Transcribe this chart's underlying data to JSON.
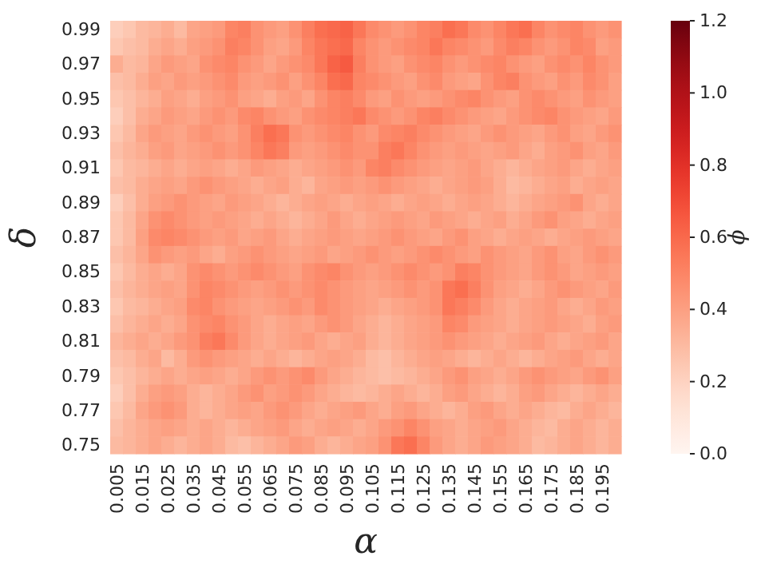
{
  "chart_data": {
    "type": "heatmap",
    "xlabel": "α",
    "ylabel": "δ",
    "clabel": "ϕ",
    "categories": [
      "0.005",
      null,
      "0.015",
      null,
      "0.025",
      null,
      "0.035",
      null,
      "0.045",
      null,
      "0.055",
      null,
      "0.065",
      null,
      "0.075",
      null,
      "0.085",
      null,
      "0.095",
      null,
      "0.105",
      null,
      "0.115",
      null,
      "0.125",
      null,
      "0.135",
      null,
      "0.145",
      null,
      "0.155",
      null,
      "0.165",
      null,
      "0.175",
      null,
      "0.185",
      null,
      "0.195",
      null
    ],
    "y_categories": [
      "0.99",
      null,
      "0.97",
      null,
      "0.95",
      null,
      "0.93",
      null,
      "0.91",
      null,
      "0.89",
      null,
      "0.87",
      null,
      "0.85",
      null,
      "0.83",
      null,
      "0.81",
      null,
      "0.79",
      null,
      "0.77",
      null,
      "0.75"
    ],
    "clim": [
      0,
      1.2
    ],
    "cticks": [
      {
        "value": 0,
        "label": "0.0"
      },
      {
        "value": 0.2,
        "label": "0.2"
      },
      {
        "value": 0.4,
        "label": "0.4"
      },
      {
        "value": 0.6,
        "label": "0.6"
      },
      {
        "value": 0.8,
        "label": "0.8"
      },
      {
        "value": 1.0,
        "label": "1.0"
      },
      {
        "value": 1.2,
        "label": "1.2"
      }
    ],
    "cells": [
      [
        0.22,
        0.25,
        0.3,
        0.32,
        0.35,
        0.3,
        0.38,
        0.4,
        0.42,
        0.5,
        0.52,
        0.45,
        0.42,
        0.4,
        0.45,
        0.52,
        0.58,
        0.6,
        0.62,
        0.55,
        0.48,
        0.45,
        0.42,
        0.45,
        0.5,
        0.52,
        0.58,
        0.55,
        0.48,
        0.45,
        0.5,
        0.55,
        0.58,
        0.5,
        0.45,
        0.48,
        0.5,
        0.45,
        0.42,
        0.45
      ],
      [
        0.25,
        0.28,
        0.3,
        0.35,
        0.38,
        0.35,
        0.4,
        0.42,
        0.45,
        0.52,
        0.5,
        0.45,
        0.4,
        0.38,
        0.42,
        0.5,
        0.55,
        0.58,
        0.6,
        0.5,
        0.45,
        0.42,
        0.45,
        0.48,
        0.5,
        0.55,
        0.5,
        0.48,
        0.45,
        0.42,
        0.48,
        0.52,
        0.5,
        0.45,
        0.42,
        0.45,
        0.5,
        0.48,
        0.4,
        0.42
      ],
      [
        0.35,
        0.3,
        0.32,
        0.38,
        0.42,
        0.4,
        0.38,
        0.45,
        0.48,
        0.5,
        0.45,
        0.42,
        0.38,
        0.42,
        0.45,
        0.48,
        0.55,
        0.62,
        0.65,
        0.52,
        0.45,
        0.42,
        0.4,
        0.45,
        0.48,
        0.5,
        0.45,
        0.42,
        0.45,
        0.48,
        0.5,
        0.45,
        0.42,
        0.4,
        0.45,
        0.48,
        0.45,
        0.5,
        0.45,
        0.42
      ],
      [
        0.28,
        0.3,
        0.35,
        0.4,
        0.38,
        0.42,
        0.4,
        0.42,
        0.45,
        0.48,
        0.42,
        0.4,
        0.42,
        0.45,
        0.4,
        0.45,
        0.5,
        0.58,
        0.6,
        0.5,
        0.48,
        0.45,
        0.42,
        0.4,
        0.45,
        0.48,
        0.42,
        0.4,
        0.38,
        0.45,
        0.5,
        0.52,
        0.45,
        0.42,
        0.4,
        0.45,
        0.42,
        0.48,
        0.45,
        0.4
      ],
      [
        0.25,
        0.28,
        0.32,
        0.35,
        0.4,
        0.38,
        0.35,
        0.4,
        0.42,
        0.45,
        0.4,
        0.38,
        0.35,
        0.4,
        0.42,
        0.38,
        0.45,
        0.5,
        0.52,
        0.48,
        0.42,
        0.4,
        0.45,
        0.42,
        0.4,
        0.42,
        0.45,
        0.48,
        0.5,
        0.45,
        0.42,
        0.4,
        0.45,
        0.48,
        0.45,
        0.42,
        0.4,
        0.45,
        0.42,
        0.4
      ],
      [
        0.22,
        0.28,
        0.35,
        0.38,
        0.42,
        0.4,
        0.38,
        0.42,
        0.45,
        0.42,
        0.48,
        0.5,
        0.45,
        0.42,
        0.4,
        0.45,
        0.48,
        0.5,
        0.52,
        0.55,
        0.48,
        0.45,
        0.42,
        0.45,
        0.5,
        0.52,
        0.48,
        0.45,
        0.42,
        0.4,
        0.38,
        0.42,
        0.45,
        0.48,
        0.5,
        0.45,
        0.42,
        0.4,
        0.38,
        0.42
      ],
      [
        0.25,
        0.3,
        0.38,
        0.42,
        0.4,
        0.38,
        0.42,
        0.45,
        0.42,
        0.4,
        0.45,
        0.52,
        0.58,
        0.55,
        0.45,
        0.42,
        0.45,
        0.48,
        0.5,
        0.45,
        0.42,
        0.48,
        0.5,
        0.52,
        0.48,
        0.45,
        0.42,
        0.4,
        0.38,
        0.42,
        0.45,
        0.42,
        0.4,
        0.38,
        0.42,
        0.45,
        0.4,
        0.38,
        0.42,
        0.45
      ],
      [
        0.28,
        0.32,
        0.35,
        0.4,
        0.42,
        0.38,
        0.4,
        0.42,
        0.45,
        0.42,
        0.45,
        0.5,
        0.55,
        0.52,
        0.42,
        0.4,
        0.42,
        0.45,
        0.48,
        0.45,
        0.45,
        0.52,
        0.55,
        0.5,
        0.45,
        0.42,
        0.4,
        0.42,
        0.4,
        0.38,
        0.4,
        0.42,
        0.38,
        0.35,
        0.4,
        0.42,
        0.45,
        0.4,
        0.38,
        0.42
      ],
      [
        0.25,
        0.3,
        0.32,
        0.35,
        0.38,
        0.35,
        0.38,
        0.4,
        0.38,
        0.35,
        0.38,
        0.42,
        0.4,
        0.38,
        0.35,
        0.38,
        0.4,
        0.42,
        0.45,
        0.42,
        0.5,
        0.52,
        0.48,
        0.45,
        0.42,
        0.4,
        0.38,
        0.4,
        0.42,
        0.38,
        0.35,
        0.32,
        0.35,
        0.38,
        0.4,
        0.42,
        0.38,
        0.35,
        0.38,
        0.4
      ],
      [
        0.28,
        0.3,
        0.35,
        0.38,
        0.4,
        0.38,
        0.42,
        0.45,
        0.42,
        0.4,
        0.38,
        0.35,
        0.38,
        0.4,
        0.35,
        0.32,
        0.38,
        0.4,
        0.42,
        0.4,
        0.42,
        0.45,
        0.42,
        0.4,
        0.38,
        0.35,
        0.38,
        0.4,
        0.42,
        0.4,
        0.35,
        0.3,
        0.32,
        0.35,
        0.38,
        0.4,
        0.35,
        0.38,
        0.4,
        0.38
      ],
      [
        0.22,
        0.28,
        0.35,
        0.4,
        0.42,
        0.45,
        0.42,
        0.4,
        0.38,
        0.42,
        0.4,
        0.38,
        0.35,
        0.32,
        0.35,
        0.38,
        0.4,
        0.38,
        0.35,
        0.38,
        0.4,
        0.38,
        0.35,
        0.38,
        0.4,
        0.38,
        0.35,
        0.38,
        0.4,
        0.38,
        0.35,
        0.32,
        0.35,
        0.38,
        0.4,
        0.42,
        0.45,
        0.38,
        0.35,
        0.38
      ],
      [
        0.25,
        0.3,
        0.38,
        0.45,
        0.48,
        0.45,
        0.42,
        0.4,
        0.42,
        0.4,
        0.38,
        0.35,
        0.38,
        0.35,
        0.32,
        0.35,
        0.38,
        0.42,
        0.38,
        0.35,
        0.38,
        0.4,
        0.42,
        0.4,
        0.38,
        0.42,
        0.4,
        0.38,
        0.35,
        0.38,
        0.4,
        0.35,
        0.38,
        0.42,
        0.45,
        0.4,
        0.38,
        0.35,
        0.38,
        0.4
      ],
      [
        0.25,
        0.3,
        0.4,
        0.48,
        0.5,
        0.48,
        0.45,
        0.42,
        0.4,
        0.42,
        0.38,
        0.4,
        0.42,
        0.38,
        0.35,
        0.38,
        0.4,
        0.42,
        0.4,
        0.38,
        0.4,
        0.42,
        0.45,
        0.42,
        0.4,
        0.38,
        0.42,
        0.45,
        0.4,
        0.38,
        0.35,
        0.38,
        0.4,
        0.38,
        0.35,
        0.38,
        0.4,
        0.42,
        0.4,
        0.38
      ],
      [
        0.28,
        0.32,
        0.38,
        0.45,
        0.42,
        0.4,
        0.42,
        0.38,
        0.35,
        0.4,
        0.42,
        0.45,
        0.42,
        0.4,
        0.38,
        0.4,
        0.42,
        0.38,
        0.4,
        0.42,
        0.45,
        0.42,
        0.4,
        0.42,
        0.45,
        0.48,
        0.45,
        0.42,
        0.4,
        0.45,
        0.42,
        0.4,
        0.38,
        0.42,
        0.45,
        0.4,
        0.38,
        0.42,
        0.45,
        0.42
      ],
      [
        0.25,
        0.3,
        0.35,
        0.38,
        0.35,
        0.38,
        0.45,
        0.48,
        0.45,
        0.42,
        0.45,
        0.48,
        0.45,
        0.42,
        0.4,
        0.45,
        0.48,
        0.5,
        0.45,
        0.42,
        0.4,
        0.42,
        0.45,
        0.48,
        0.45,
        0.42,
        0.45,
        0.52,
        0.5,
        0.45,
        0.42,
        0.4,
        0.38,
        0.42,
        0.45,
        0.42,
        0.38,
        0.4,
        0.42,
        0.4
      ],
      [
        0.28,
        0.32,
        0.35,
        0.38,
        0.4,
        0.38,
        0.45,
        0.5,
        0.48,
        0.45,
        0.42,
        0.4,
        0.42,
        0.45,
        0.42,
        0.45,
        0.48,
        0.45,
        0.42,
        0.4,
        0.38,
        0.4,
        0.42,
        0.45,
        0.42,
        0.45,
        0.55,
        0.58,
        0.52,
        0.45,
        0.4,
        0.38,
        0.35,
        0.38,
        0.42,
        0.45,
        0.42,
        0.4,
        0.38,
        0.42
      ],
      [
        0.25,
        0.3,
        0.32,
        0.35,
        0.38,
        0.4,
        0.48,
        0.5,
        0.45,
        0.42,
        0.4,
        0.38,
        0.4,
        0.42,
        0.45,
        0.42,
        0.48,
        0.45,
        0.42,
        0.4,
        0.38,
        0.35,
        0.38,
        0.4,
        0.42,
        0.45,
        0.55,
        0.52,
        0.48,
        0.42,
        0.38,
        0.35,
        0.38,
        0.4,
        0.42,
        0.38,
        0.35,
        0.38,
        0.42,
        0.4
      ],
      [
        0.28,
        0.32,
        0.35,
        0.38,
        0.35,
        0.38,
        0.45,
        0.48,
        0.5,
        0.45,
        0.42,
        0.38,
        0.35,
        0.38,
        0.4,
        0.38,
        0.42,
        0.45,
        0.42,
        0.38,
        0.35,
        0.32,
        0.35,
        0.38,
        0.4,
        0.42,
        0.5,
        0.48,
        0.42,
        0.4,
        0.38,
        0.35,
        0.38,
        0.4,
        0.42,
        0.4,
        0.38,
        0.35,
        0.4,
        0.42
      ],
      [
        0.32,
        0.35,
        0.38,
        0.35,
        0.38,
        0.42,
        0.45,
        0.52,
        0.55,
        0.48,
        0.42,
        0.38,
        0.35,
        0.38,
        0.4,
        0.42,
        0.38,
        0.35,
        0.38,
        0.4,
        0.35,
        0.32,
        0.35,
        0.38,
        0.4,
        0.42,
        0.45,
        0.42,
        0.4,
        0.38,
        0.35,
        0.38,
        0.4,
        0.42,
        0.38,
        0.35,
        0.38,
        0.4,
        0.42,
        0.38
      ],
      [
        0.28,
        0.3,
        0.35,
        0.38,
        0.3,
        0.35,
        0.42,
        0.45,
        0.42,
        0.4,
        0.38,
        0.35,
        0.38,
        0.35,
        0.32,
        0.35,
        0.38,
        0.4,
        0.38,
        0.35,
        0.3,
        0.28,
        0.32,
        0.35,
        0.38,
        0.4,
        0.38,
        0.35,
        0.32,
        0.35,
        0.38,
        0.35,
        0.32,
        0.35,
        0.38,
        0.4,
        0.42,
        0.38,
        0.35,
        0.38
      ],
      [
        0.25,
        0.28,
        0.32,
        0.35,
        0.38,
        0.35,
        0.38,
        0.4,
        0.38,
        0.35,
        0.38,
        0.42,
        0.45,
        0.42,
        0.45,
        0.48,
        0.42,
        0.38,
        0.35,
        0.32,
        0.3,
        0.28,
        0.3,
        0.32,
        0.35,
        0.38,
        0.42,
        0.45,
        0.4,
        0.38,
        0.35,
        0.38,
        0.42,
        0.45,
        0.42,
        0.4,
        0.38,
        0.42,
        0.45,
        0.4
      ],
      [
        0.22,
        0.28,
        0.35,
        0.4,
        0.42,
        0.4,
        0.35,
        0.32,
        0.35,
        0.38,
        0.42,
        0.45,
        0.4,
        0.42,
        0.45,
        0.42,
        0.38,
        0.35,
        0.32,
        0.3,
        0.32,
        0.35,
        0.38,
        0.35,
        0.32,
        0.35,
        0.4,
        0.42,
        0.38,
        0.35,
        0.32,
        0.35,
        0.4,
        0.42,
        0.38,
        0.35,
        0.32,
        0.35,
        0.38,
        0.35
      ],
      [
        0.25,
        0.3,
        0.38,
        0.42,
        0.45,
        0.42,
        0.35,
        0.32,
        0.35,
        0.38,
        0.4,
        0.38,
        0.42,
        0.45,
        0.42,
        0.38,
        0.35,
        0.38,
        0.4,
        0.42,
        0.38,
        0.35,
        0.4,
        0.42,
        0.38,
        0.35,
        0.32,
        0.35,
        0.4,
        0.42,
        0.38,
        0.35,
        0.38,
        0.35,
        0.32,
        0.3,
        0.35,
        0.38,
        0.35,
        0.32
      ],
      [
        0.28,
        0.32,
        0.35,
        0.38,
        0.4,
        0.38,
        0.35,
        0.38,
        0.35,
        0.32,
        0.35,
        0.38,
        0.4,
        0.42,
        0.38,
        0.35,
        0.38,
        0.4,
        0.38,
        0.35,
        0.38,
        0.42,
        0.45,
        0.5,
        0.45,
        0.4,
        0.38,
        0.35,
        0.38,
        0.4,
        0.42,
        0.38,
        0.35,
        0.32,
        0.3,
        0.35,
        0.38,
        0.35,
        0.32,
        0.35
      ],
      [
        0.3,
        0.32,
        0.35,
        0.38,
        0.35,
        0.32,
        0.35,
        0.38,
        0.35,
        0.3,
        0.28,
        0.32,
        0.35,
        0.38,
        0.42,
        0.4,
        0.35,
        0.32,
        0.35,
        0.38,
        0.4,
        0.45,
        0.55,
        0.58,
        0.5,
        0.42,
        0.38,
        0.35,
        0.38,
        0.42,
        0.4,
        0.38,
        0.35,
        0.3,
        0.32,
        0.35,
        0.38,
        0.35,
        0.32,
        0.35
      ]
    ]
  }
}
